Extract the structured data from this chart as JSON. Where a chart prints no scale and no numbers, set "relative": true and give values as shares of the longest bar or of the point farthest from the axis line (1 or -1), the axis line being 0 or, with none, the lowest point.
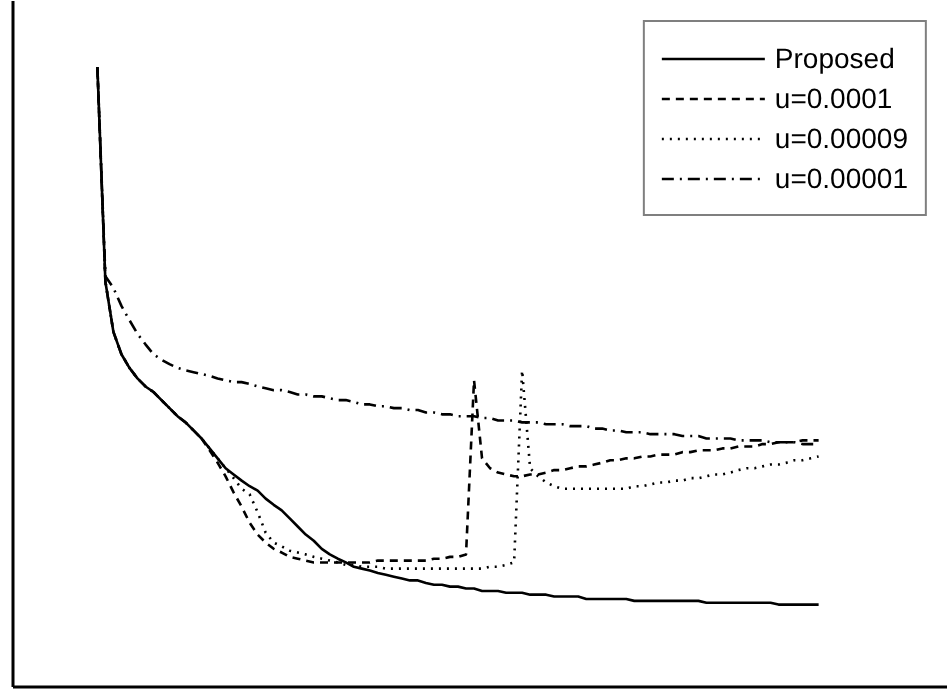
{
  "chart_data": {
    "type": "line",
    "relative": true,
    "legend": "top right",
    "categories": [
      null,
      null,
      null,
      null,
      null,
      null,
      null,
      null,
      null,
      null,
      null,
      null,
      null,
      null,
      null,
      null,
      null,
      null,
      null,
      null,
      null,
      null,
      null,
      null,
      null,
      null,
      null,
      null,
      null,
      null,
      null,
      null,
      null,
      null,
      null,
      null,
      null,
      null,
      null,
      null,
      null,
      null,
      null,
      null,
      null,
      null,
      null,
      null,
      null,
      null,
      null,
      null,
      null,
      null,
      null,
      null,
      null,
      null,
      null,
      null,
      null,
      null,
      null,
      null,
      null,
      null,
      null,
      null,
      null,
      null,
      null,
      null,
      null,
      null,
      null,
      null,
      null,
      null,
      null,
      null,
      null,
      null,
      null,
      null,
      null,
      null,
      null,
      null,
      null,
      null,
      null
    ],
    "series": [
      {
        "name": "Proposed",
        "color": "#000000",
        "line_style": "solid",
        "values": [
          1.0,
          0.654,
          0.573,
          0.537,
          0.515,
          0.498,
          0.485,
          0.476,
          0.463,
          0.45,
          0.437,
          0.427,
          0.414,
          0.401,
          0.385,
          0.369,
          0.353,
          0.343,
          0.333,
          0.324,
          0.317,
          0.304,
          0.294,
          0.285,
          0.272,
          0.259,
          0.246,
          0.236,
          0.223,
          0.214,
          0.207,
          0.201,
          0.194,
          0.191,
          0.188,
          0.184,
          0.181,
          0.178,
          0.175,
          0.172,
          0.172,
          0.168,
          0.165,
          0.165,
          0.162,
          0.162,
          0.159,
          0.159,
          0.155,
          0.155,
          0.155,
          0.152,
          0.152,
          0.152,
          0.149,
          0.149,
          0.149,
          0.146,
          0.146,
          0.146,
          0.146,
          0.142,
          0.142,
          0.142,
          0.142,
          0.142,
          0.142,
          0.139,
          0.139,
          0.139,
          0.139,
          0.139,
          0.139,
          0.139,
          0.139,
          0.139,
          0.136,
          0.136,
          0.136,
          0.136,
          0.136,
          0.136,
          0.136,
          0.136,
          0.136,
          0.133,
          0.133,
          0.133,
          0.133,
          0.133,
          0.133
        ]
      },
      {
        "name": "u=0.0001",
        "color": "#000000",
        "line_style": "dashed",
        "values": [
          1.0,
          0.654,
          0.573,
          0.537,
          0.515,
          0.498,
          0.485,
          0.476,
          0.463,
          0.45,
          0.437,
          0.427,
          0.414,
          0.401,
          0.382,
          0.362,
          0.34,
          0.314,
          0.291,
          0.265,
          0.246,
          0.233,
          0.223,
          0.217,
          0.21,
          0.207,
          0.204,
          0.201,
          0.201,
          0.201,
          0.201,
          0.201,
          0.201,
          0.201,
          0.201,
          0.204,
          0.204,
          0.204,
          0.204,
          0.204,
          0.204,
          0.204,
          0.207,
          0.207,
          0.21,
          0.21,
          0.214,
          0.495,
          0.369,
          0.353,
          0.346,
          0.343,
          0.34,
          0.34,
          0.343,
          0.343,
          0.346,
          0.35,
          0.35,
          0.353,
          0.356,
          0.356,
          0.359,
          0.362,
          0.366,
          0.366,
          0.369,
          0.369,
          0.372,
          0.372,
          0.375,
          0.375,
          0.375,
          0.379,
          0.379,
          0.382,
          0.382,
          0.382,
          0.385,
          0.385,
          0.388,
          0.388,
          0.388,
          0.392,
          0.392,
          0.395,
          0.395,
          0.395,
          0.398,
          0.398,
          0.398
        ]
      },
      {
        "name": "u=0.00009",
        "color": "#000000",
        "line_style": "dotted",
        "values": [
          1.0,
          0.654,
          0.573,
          0.537,
          0.515,
          0.498,
          0.485,
          0.476,
          0.463,
          0.45,
          0.437,
          0.427,
          0.414,
          0.401,
          0.385,
          0.369,
          0.353,
          0.337,
          0.32,
          0.311,
          0.282,
          0.249,
          0.233,
          0.227,
          0.22,
          0.217,
          0.214,
          0.21,
          0.207,
          0.204,
          0.201,
          0.197,
          0.197,
          0.194,
          0.194,
          0.194,
          0.191,
          0.191,
          0.191,
          0.191,
          0.191,
          0.191,
          0.191,
          0.191,
          0.191,
          0.191,
          0.191,
          0.191,
          0.191,
          0.194,
          0.194,
          0.197,
          0.201,
          0.511,
          0.353,
          0.34,
          0.33,
          0.324,
          0.32,
          0.32,
          0.32,
          0.32,
          0.32,
          0.32,
          0.32,
          0.32,
          0.32,
          0.324,
          0.324,
          0.327,
          0.33,
          0.33,
          0.333,
          0.333,
          0.337,
          0.337,
          0.34,
          0.343,
          0.343,
          0.346,
          0.35,
          0.353,
          0.353,
          0.356,
          0.359,
          0.359,
          0.362,
          0.366,
          0.366,
          0.369,
          0.372
        ]
      },
      {
        "name": "u=0.00001",
        "color": "#000000",
        "line_style": "dashdot",
        "values": [
          1.0,
          0.663,
          0.644,
          0.615,
          0.592,
          0.57,
          0.553,
          0.537,
          0.528,
          0.521,
          0.515,
          0.511,
          0.508,
          0.505,
          0.502,
          0.498,
          0.495,
          0.492,
          0.492,
          0.489,
          0.485,
          0.482,
          0.479,
          0.479,
          0.476,
          0.472,
          0.472,
          0.469,
          0.469,
          0.466,
          0.463,
          0.463,
          0.46,
          0.456,
          0.456,
          0.453,
          0.453,
          0.45,
          0.45,
          0.447,
          0.447,
          0.443,
          0.443,
          0.44,
          0.44,
          0.437,
          0.437,
          0.437,
          0.434,
          0.434,
          0.43,
          0.43,
          0.43,
          0.427,
          0.427,
          0.427,
          0.424,
          0.424,
          0.424,
          0.421,
          0.421,
          0.421,
          0.417,
          0.417,
          0.414,
          0.414,
          0.411,
          0.411,
          0.411,
          0.408,
          0.408,
          0.408,
          0.408,
          0.405,
          0.405,
          0.405,
          0.401,
          0.401,
          0.401,
          0.401,
          0.398,
          0.398,
          0.398,
          0.398,
          0.395,
          0.395,
          0.395,
          0.395,
          0.392,
          0.392,
          0.392
        ]
      }
    ]
  }
}
